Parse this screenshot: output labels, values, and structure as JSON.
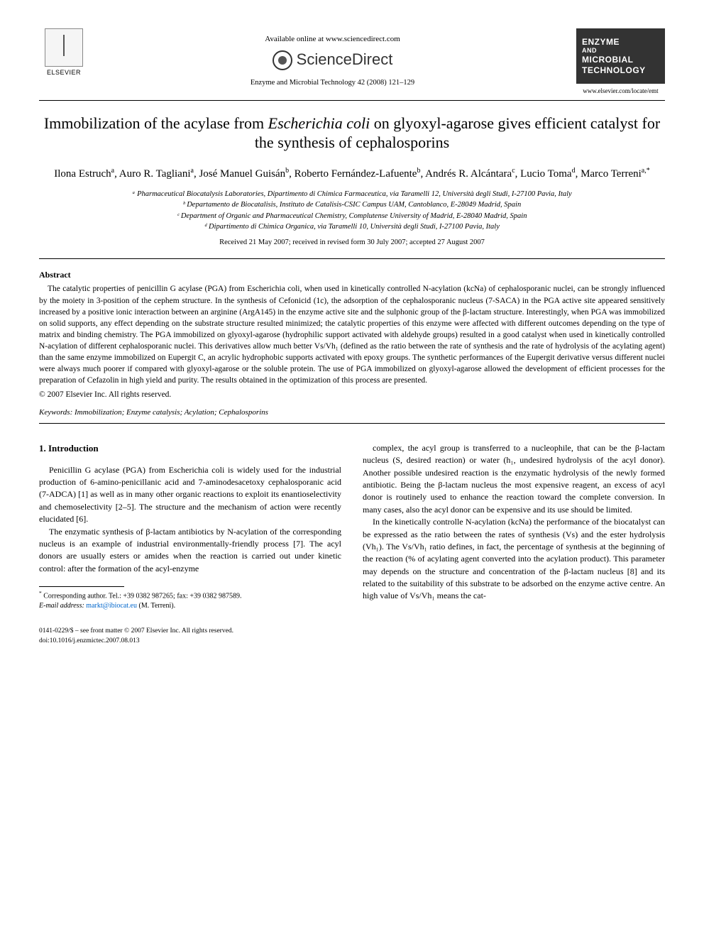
{
  "header": {
    "elsevier_label": "ELSEVIER",
    "available_online": "Available online at www.sciencedirect.com",
    "sciencedirect": "ScienceDirect",
    "journal_citation": "Enzyme and Microbial Technology 42 (2008) 121–129",
    "cover_line1": "ENZYME",
    "cover_and": "AND",
    "cover_line2": "MICROBIAL",
    "cover_line3": "TECHNOLOGY",
    "journal_url": "www.elsevier.com/locate/emt"
  },
  "title": "Immobilization of the acylase from Escherichia coli on glyoxyl-agarose gives efficient catalyst for the synthesis of cephalosporins",
  "title_parts": {
    "pre": "Immobilization of the acylase from ",
    "ital": "Escherichia coli",
    "post": " on glyoxyl-agarose gives efficient catalyst for the synthesis of cephalosporins"
  },
  "authors_html": "Ilona Estruch<sup>a</sup>, Auro R. Tagliani<sup>a</sup>, José Manuel Guisán<sup>b</sup>, Roberto Fernández-Lafuente<sup>b</sup>, Andrés R. Alcántara<sup>c</sup>, Lucio Toma<sup>d</sup>, Marco Terreni<sup>a,*</sup>",
  "affiliations": [
    "ᵃ Pharmaceutical Biocatalysis Laboratories, Dipartimento di Chimica Farmaceutica, via Taramelli 12, Università degli Studi, I-27100 Pavia, Italy",
    "ᵇ Departamento de Biocatalisis, Instituto de Catalisis-CSIC Campus UAM, Cantoblanco, E-28049 Madrid, Spain",
    "ᶜ Department of Organic and Pharmaceutical Chemistry, Complutense University of Madrid, E-28040 Madrid, Spain",
    "ᵈ Dipartimento di Chimica Organica, via Taramelli 10, Università degli Studi, I-27100 Pavia, Italy"
  ],
  "dates": "Received 21 May 2007; received in revised form 30 July 2007; accepted 27 August 2007",
  "abstract": {
    "heading": "Abstract",
    "body": "The catalytic properties of penicillin G acylase (PGA) from Escherichia coli, when used in kinetically controlled N-acylation (kcNa) of cephalosporanic nuclei, can be strongly influenced by the moiety in 3-position of the cephem structure. In the synthesis of Cefonicid (1c), the adsorption of the cephalosporanic nucleus (7-SACA) in the PGA active site appeared sensitively increased by a positive ionic interaction between an arginine (ArgA145) in the enzyme active site and the sulphonic group of the β-lactam structure. Interestingly, when PGA was immobilized on solid supports, any effect depending on the substrate structure resulted minimized; the catalytic properties of this enzyme were affected with different outcomes depending on the type of matrix and binding chemistry. The PGA immobilized on glyoxyl-agarose (hydrophilic support activated with aldehyde groups) resulted in a good catalyst when used in kinetically controlled N-acylation of different cephalosporanic nuclei. This derivatives allow much better Vs/Vh₁ (defined as the ratio between the rate of synthesis and the rate of hydrolysis of the acylating agent) than the same enzyme immobilized on Eupergit C, an acrylic hydrophobic supports activated with epoxy groups. The synthetic performances of the Eupergit derivative versus different nuclei were always much poorer if compared with glyoxyl-agarose or the soluble protein. The use of PGA immobilized on glyoxyl-agarose allowed the development of efficient processes for the preparation of Cefazolin in high yield and purity. The results obtained in the optimization of this process are presented.",
    "copyright": "© 2007 Elsevier Inc. All rights reserved."
  },
  "keywords": {
    "label": "Keywords:",
    "text": " Immobilization; Enzyme catalysis; Acylation; Cephalosporins"
  },
  "intro": {
    "heading": "1. Introduction",
    "left": [
      "Penicillin G acylase (PGA) from Escherichia coli is widely used for the industrial production of 6-amino-penicillanic acid and 7-aminodesacetoxy cephalosporanic acid (7-ADCA) [1] as well as in many other organic reactions to exploit its enantioselectivity and chemoselectivity [2–5]. The structure and the mechanism of action were recently elucidated [6].",
      "The enzymatic synthesis of β-lactam antibiotics by N-acylation of the corresponding nucleus is an example of industrial environmentally-friendly process [7]. The acyl donors are usually esters or amides when the reaction is carried out under kinetic control: after the formation of the acyl-enzyme"
    ],
    "right": [
      "complex, the acyl group is transferred to a nucleophile, that can be the β-lactam nucleus (S, desired reaction) or water (h₁, undesired hydrolysis of the acyl donor). Another possible undesired reaction is the enzymatic hydrolysis of the newly formed antibiotic. Being the β-lactam nucleus the most expensive reagent, an excess of acyl donor is routinely used to enhance the reaction toward the complete conversion. In many cases, also the acyl donor can be expensive and its use should be limited.",
      "In the kinetically controlle N-acylation (kcNa) the performance of the biocatalyst can be expressed as the ratio between the rates of synthesis (Vs) and the ester hydrolysis (Vh₁). The Vs/Vh₁ ratio defines, in fact, the percentage of synthesis at the beginning of the reaction (% of acylating agent converted into the acylation product). This parameter may depends on the structure and concentration of the β-lactam nucleus [8] and its related to the suitability of this substrate to be adsorbed on the enzyme active centre. An high value of Vs/Vh₁ means the cat-"
    ]
  },
  "footnote": {
    "marker": "*",
    "line1": "Corresponding author. Tel.: +39 0382 987265; fax: +39 0382 987589.",
    "line2_label": "E-mail address:",
    "line2_email": "markt@ibiocat.eu",
    "line2_post": "(M. Terreni)."
  },
  "footer": {
    "issn": "0141-0229/$ – see front matter © 2007 Elsevier Inc. All rights reserved.",
    "doi": "doi:10.1016/j.enzmictec.2007.08.013"
  },
  "colors": {
    "text": "#000000",
    "link": "#0066cc",
    "cover_bg": "#333333",
    "cover_fg": "#ffffff"
  }
}
